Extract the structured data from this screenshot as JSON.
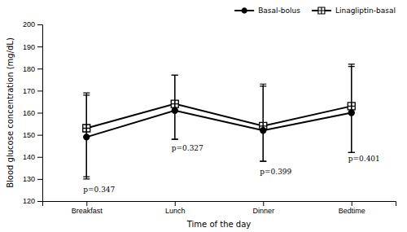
{
  "chart_data": {
    "type": "line",
    "xlabel": "Time of the day",
    "ylabel": "Blood glucose concentration (mg/dL)",
    "categories": [
      "Breakfast",
      "Lunch",
      "Dinner",
      "Bedtime"
    ],
    "series": [
      {
        "name": "Basal-bolus",
        "color": "black",
        "marker": "circle",
        "values": [
          149,
          161,
          152,
          160
        ],
        "errors_upper": [
          19,
          16,
          20,
          21
        ],
        "errors_lower": [
          19,
          13,
          14,
          18
        ]
      },
      {
        "name": "Linagliptin-basal",
        "color": "black",
        "marker": "square",
        "values": [
          153,
          164,
          154,
          163
        ],
        "errors_upper": [
          16,
          13,
          19,
          19
        ],
        "errors_lower": [
          22,
          16,
          16,
          21
        ]
      }
    ],
    "annotations": [
      {
        "text": "p=0.347",
        "x": "Breakfast",
        "y": 124
      },
      {
        "text": "p=0.327",
        "x": "Lunch",
        "y": 143
      },
      {
        "text": "p=0.399",
        "x": "Dinner",
        "y": 132
      },
      {
        "text": "p=0.401",
        "x": "Bedtime",
        "y": 138
      }
    ],
    "ylim": [
      120,
      200
    ],
    "yticks": [
      120,
      130,
      140,
      150,
      160,
      170,
      180,
      190,
      200
    ],
    "legend": "upper right"
  }
}
